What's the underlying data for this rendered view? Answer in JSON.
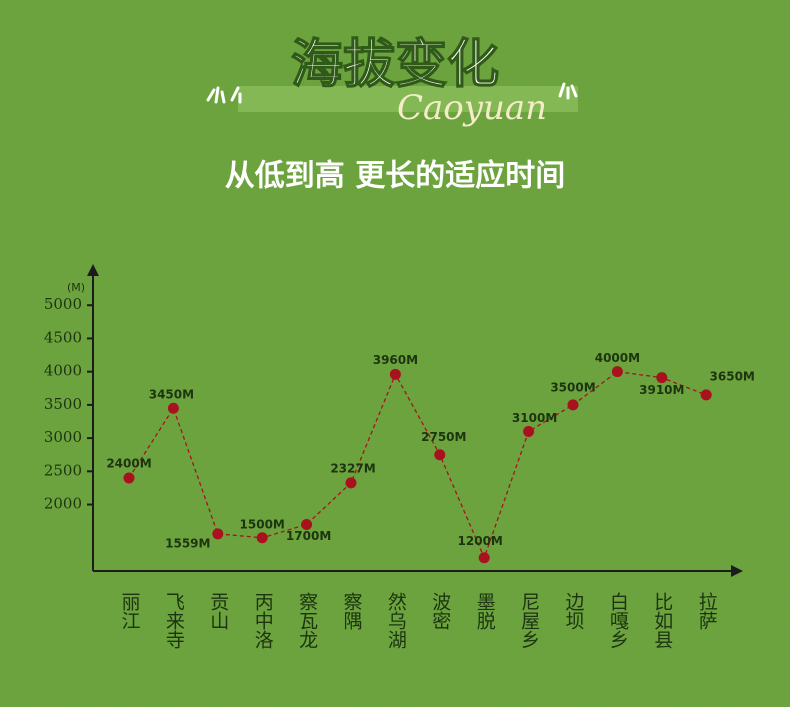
{
  "chart_data": {
    "type": "line",
    "title": "海拔变化",
    "script_title": "Caoyuan",
    "subtitle": "从低到高 更长的适应时间",
    "y_unit": "(M)",
    "categories": [
      "丽江",
      "飞来寺",
      "贡山",
      "丙中洛",
      "察瓦龙",
      "察隅",
      "然乌湖",
      "波密",
      "墨脱",
      "尼屋乡",
      "边坝",
      "白嘎乡",
      "比如县",
      "拉萨"
    ],
    "series": [
      {
        "color": "#a8121f",
        "values": [
          2400,
          3450,
          1559,
          1500,
          1700,
          2327,
          3960,
          2750,
          1200,
          3100,
          3500,
          4000,
          3910,
          3650
        ],
        "value_labels": [
          "2400M",
          "3450M",
          "1559M",
          "1500M",
          "1700M",
          "2327M",
          "3960M",
          "2750M",
          "1200M",
          "3100M",
          "3500M",
          "4000M",
          "3910M",
          "3650M"
        ]
      }
    ],
    "ylim": [
      1000,
      5500
    ],
    "yticks": [
      2000,
      2500,
      3000,
      3500,
      4000,
      4500,
      5000
    ]
  }
}
